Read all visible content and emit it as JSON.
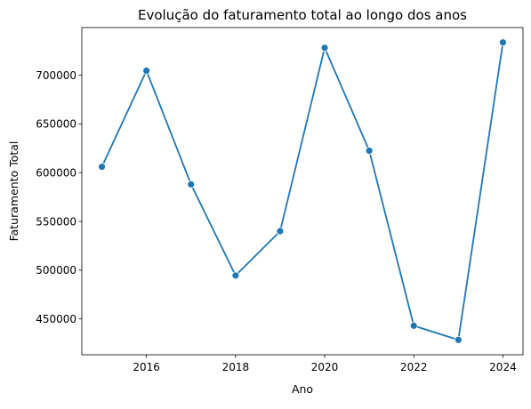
{
  "chart_data": {
    "type": "line",
    "title": "Evolução do faturamento total ao longo dos anos",
    "xlabel": "Ano",
    "ylabel": "Faturamento Total",
    "x": [
      2015,
      2016,
      2017,
      2018,
      2019,
      2020,
      2021,
      2022,
      2023,
      2024
    ],
    "series": [
      {
        "values": [
          606000,
          704500,
          588000,
          494500,
          540000,
          728000,
          622500,
          443000,
          428500,
          733500
        ],
        "color": "#1f77b4",
        "marker": "circle"
      }
    ],
    "xticks": [
      2016,
      2018,
      2020,
      2022,
      2024
    ],
    "xtick_labels": [
      "2016",
      "2018",
      "2020",
      "2022",
      "2024"
    ],
    "yticks": [
      450000,
      500000,
      550000,
      600000,
      650000,
      700000
    ],
    "ytick_labels": [
      "450000",
      "500000",
      "550000",
      "600000",
      "650000",
      "700000"
    ],
    "xlim": [
      2014.55,
      2024.45
    ],
    "ylim": [
      413250,
      748750
    ],
    "grid": false,
    "legend": false
  }
}
